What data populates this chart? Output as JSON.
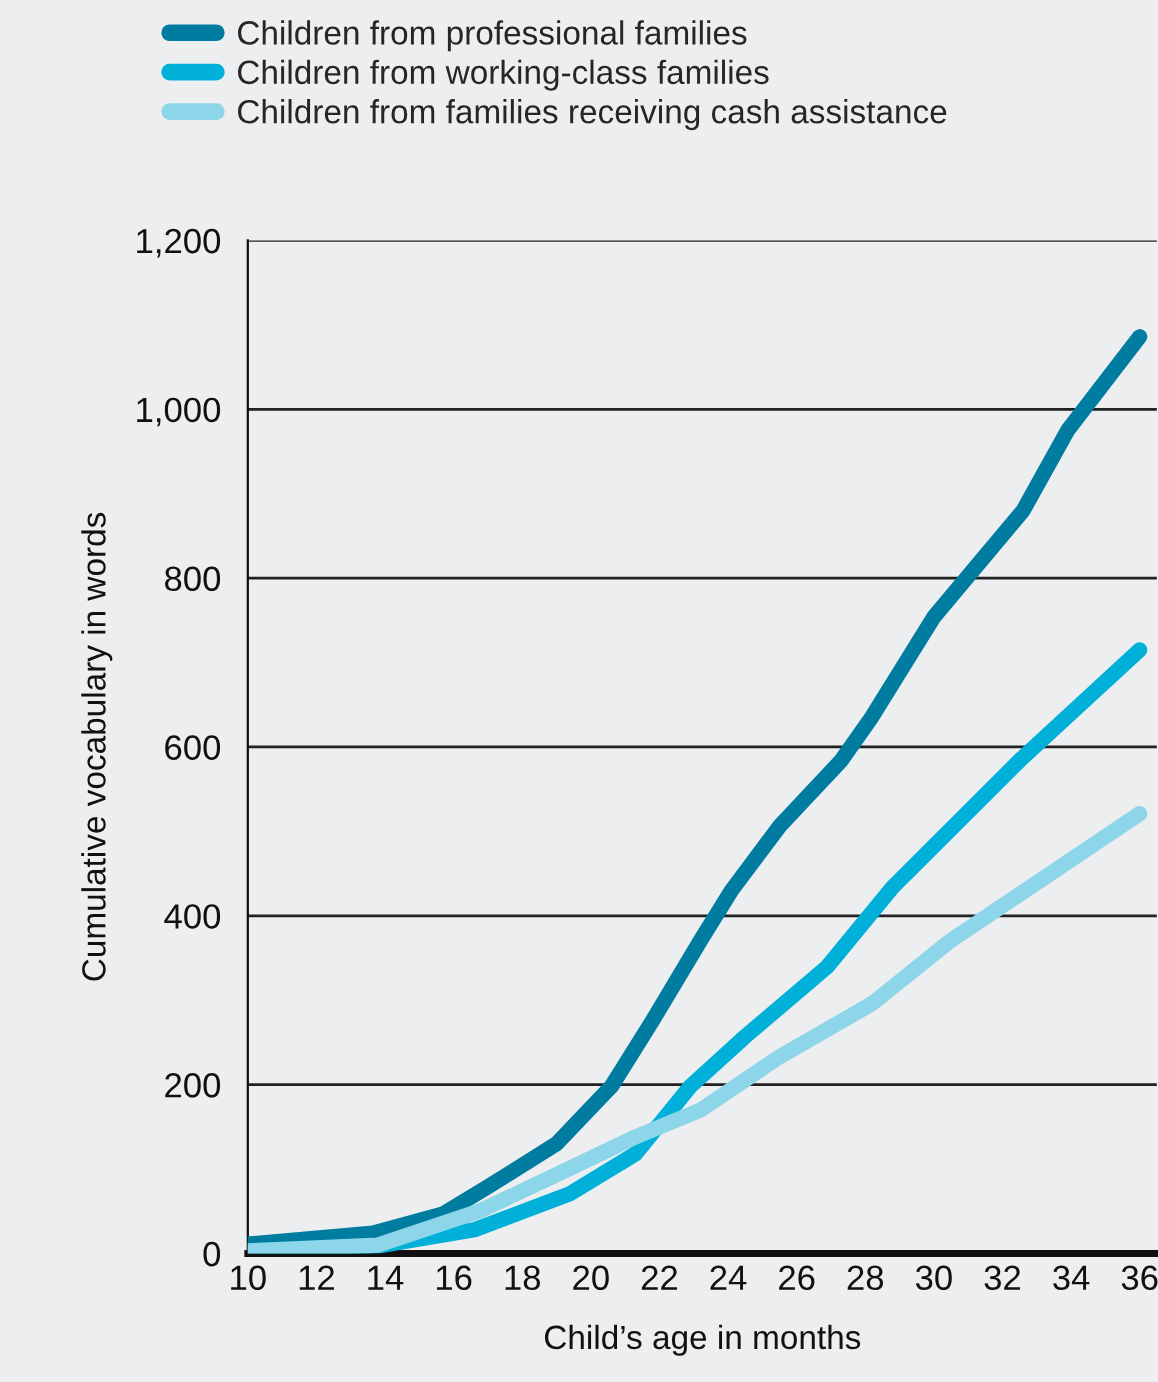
{
  "chart_data": {
    "type": "line",
    "xlabel": "Child’s age in months",
    "ylabel": "Cumulative vocabulary in words",
    "xlim": [
      10,
      36.5
    ],
    "xticks": [
      10,
      12,
      14,
      16,
      18,
      20,
      22,
      24,
      26,
      28,
      30,
      32,
      34,
      36
    ],
    "ylim": [
      0,
      1200
    ],
    "yticks": [
      0,
      {
        "value": 200,
        "label": "200"
      },
      {
        "value": 400,
        "label": "400"
      },
      {
        "value": 600,
        "label": "600"
      },
      {
        "value": 800,
        "label": "800"
      },
      {
        "value": 1000,
        "label": "1,000"
      },
      {
        "value": 1200,
        "label": "1,200"
      }
    ],
    "grid": "y",
    "legend": "top",
    "line_style": "solid",
    "marker": "none",
    "series": [
      {
        "name": "Children from professional families",
        "color": "#007ca0",
        "x": [
          10,
          13.65,
          15.7,
          17.0,
          19.0,
          20.6,
          21.8,
          23.2,
          24.1,
          25.5,
          27.3,
          28.2,
          30.0,
          32.6,
          33.9,
          36
        ],
        "values": [
          11,
          24,
          47,
          79,
          130,
          198,
          276,
          371,
          430,
          506,
          584,
          636,
          754,
          880,
          975,
          1086
        ]
      },
      {
        "name": "Children from working-class families",
        "color": "#00b0d8",
        "x": [
          10,
          13.8,
          16.6,
          19.4,
          21.3,
          22.9,
          24.5,
          26.9,
          28.8,
          32.5,
          36
        ],
        "values": [
          3,
          9,
          28,
          71,
          118,
          198,
          257,
          340,
          434,
          584,
          715
        ]
      },
      {
        "name": "Children from families receiving cash assistance",
        "color": "#8dd5e8",
        "x": [
          10,
          13.8,
          16.8,
          19.5,
          21.3,
          23.2,
          25.5,
          28.2,
          30.5,
          36
        ],
        "values": [
          3,
          10,
          51,
          103,
          138,
          170,
          233,
          296,
          371,
          521
        ]
      }
    ]
  }
}
